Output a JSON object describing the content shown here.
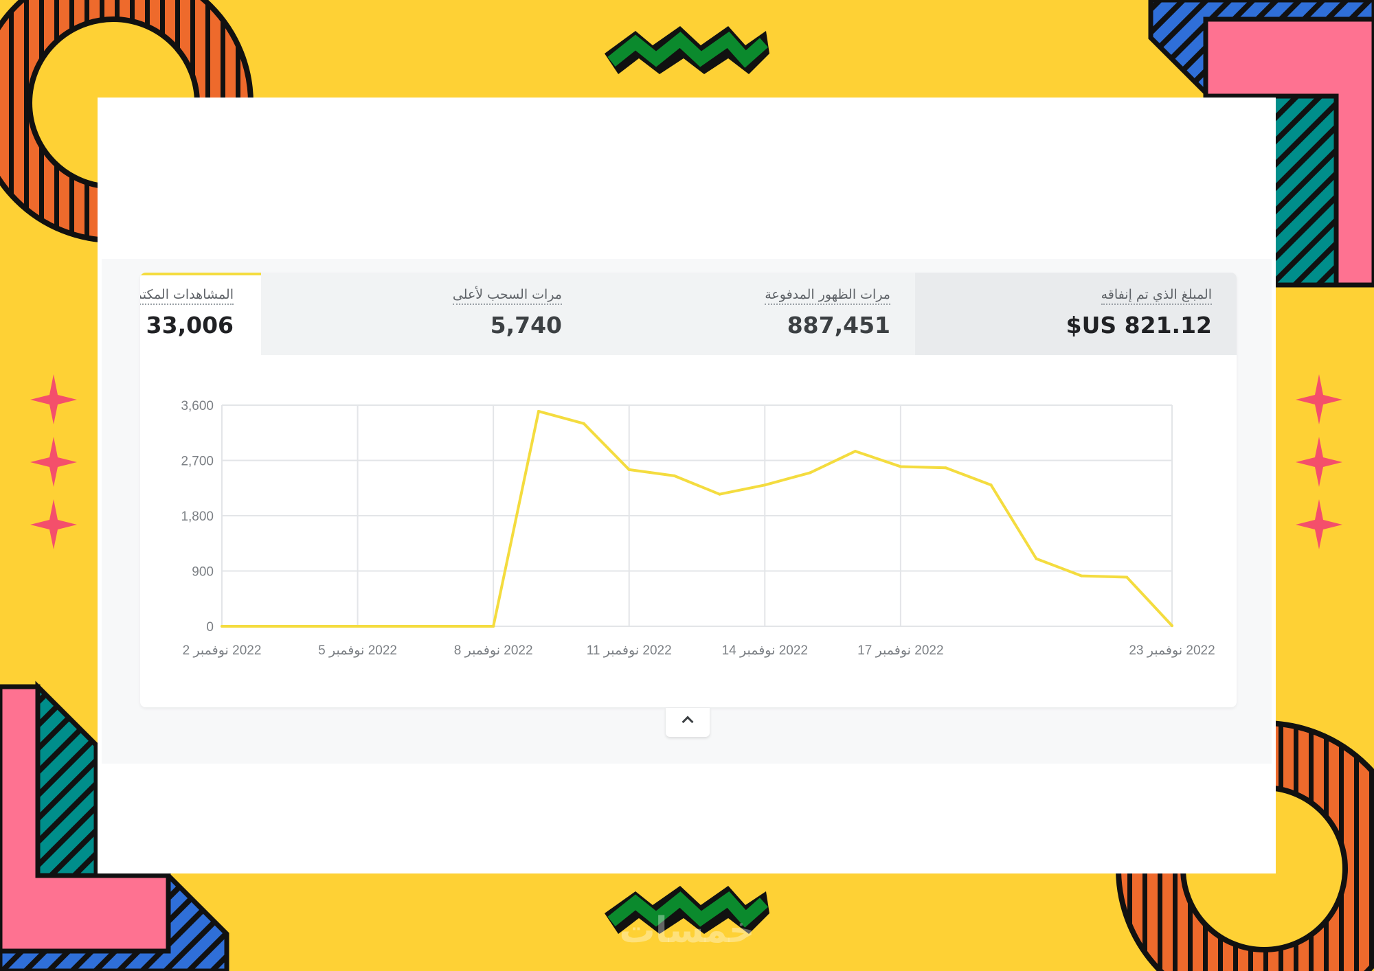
{
  "colors": {
    "background": "#fed135",
    "line": "#f4dc3f",
    "accent_orange": "#ee6a2c",
    "accent_pink": "#fe7291",
    "accent_teal": "#008e8b",
    "accent_blue": "#2f6fd8",
    "accent_green": "#0b8a2d"
  },
  "tabs": [
    {
      "label": "المبلغ الذي تم إنفاقه",
      "value": "$US 821.12"
    },
    {
      "label": "مرات الظهور المدفوعة",
      "value": "887,451"
    },
    {
      "label": "مرات السحب لأعلى",
      "value": "5,740"
    },
    {
      "label": "المشاهدات المكتملة",
      "value": "33,006"
    }
  ],
  "chart_data": {
    "type": "line",
    "y_ticks": [
      "3,600",
      "2,700",
      "1,800",
      "900",
      "0"
    ],
    "ylim": [
      0,
      3600
    ],
    "x_tick_labels": [
      "2022 نوفمبر 2",
      "2022 نوفمبر 5",
      "2022 نوفمبر 8",
      "2022 نوفمبر 11",
      "2022 نوفمبر 14",
      "2022 نوفمبر 17",
      "2022 نوفمبر 23"
    ],
    "x": [
      "2022-11-02",
      "2022-11-03",
      "2022-11-04",
      "2022-11-05",
      "2022-11-06",
      "2022-11-07",
      "2022-11-08",
      "2022-11-09",
      "2022-11-10",
      "2022-11-11",
      "2022-11-12",
      "2022-11-13",
      "2022-11-14",
      "2022-11-15",
      "2022-11-16",
      "2022-11-17",
      "2022-11-18",
      "2022-11-19",
      "2022-11-20",
      "2022-11-21",
      "2022-11-22",
      "2022-11-23"
    ],
    "series": [
      {
        "values": [
          0,
          0,
          0,
          0,
          0,
          0,
          0,
          3500,
          3300,
          2550,
          2450,
          2150,
          2300,
          2500,
          2850,
          2600,
          2580,
          2300,
          1100,
          820,
          800,
          10
        ]
      }
    ],
    "grid": true
  },
  "collapse_icon": "chevron-up-icon",
  "watermark": "خمسات"
}
